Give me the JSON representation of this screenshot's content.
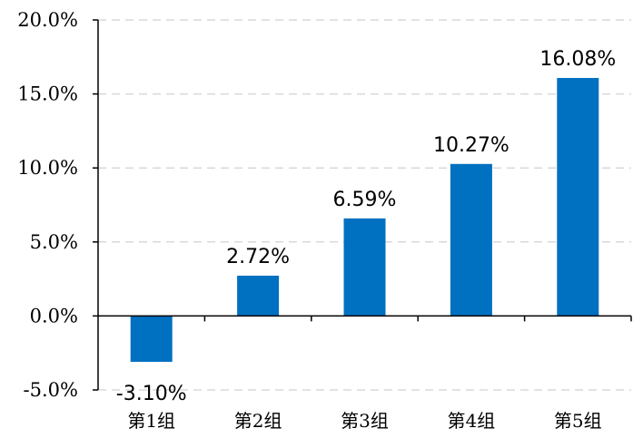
{
  "chart_data": {
    "type": "bar",
    "categories": [
      "第1组",
      "第2组",
      "第3组",
      "第4组",
      "第5组"
    ],
    "values": [
      -3.1,
      2.72,
      6.59,
      10.27,
      16.08
    ],
    "data_labels": [
      "-3.10%",
      "2.72%",
      "6.59%",
      "10.27%",
      "16.08%"
    ],
    "yticks": [
      20,
      15,
      10,
      5,
      0,
      -5
    ],
    "ytick_labels": [
      "20.0%",
      "15.0%",
      "10.0%",
      "5.0%",
      "0.0%",
      "-5.0%"
    ],
    "ylim": [
      -5,
      20
    ],
    "grid": true,
    "bar_color": "#0070C0",
    "title": "",
    "xlabel": "",
    "ylabel": ""
  }
}
